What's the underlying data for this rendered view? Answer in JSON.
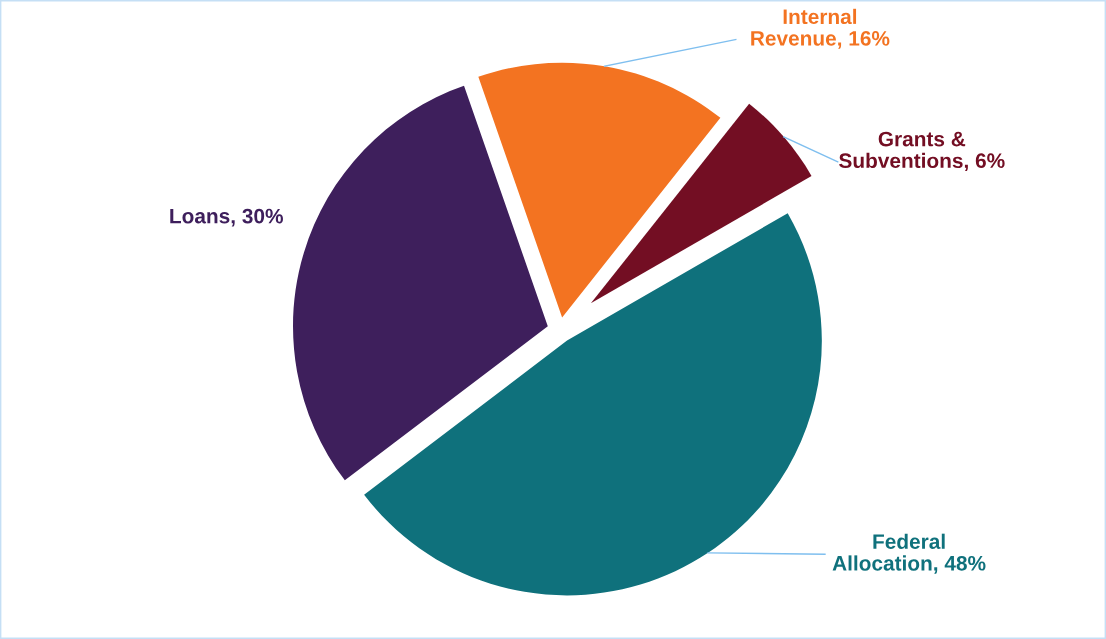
{
  "chart_data": {
    "type": "pie",
    "categories": [
      "Grants & Subventions",
      "Internal Revenue",
      "Loans",
      "Federal Allocation"
    ],
    "values": [
      6,
      16,
      30,
      48
    ],
    "value_labels": [
      "6%",
      "16%",
      "30%",
      "48%"
    ],
    "colors": [
      "#730e23",
      "#f37321",
      "#3e1f5c",
      "#0f717c"
    ],
    "legend": false
  }
}
